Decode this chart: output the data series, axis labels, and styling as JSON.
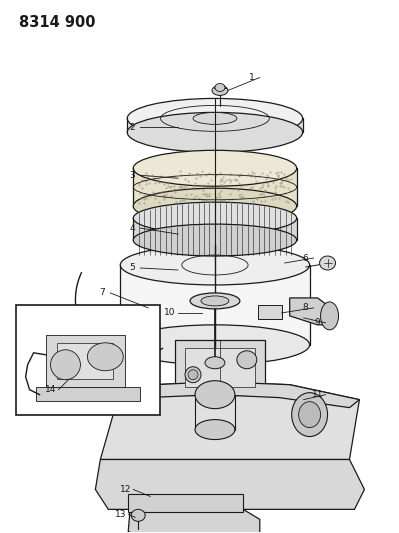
{
  "title": "8314 900",
  "bg_color": "#ffffff",
  "figsize": [
    3.99,
    5.33
  ],
  "dpi": 100,
  "black": "#1a1a1a",
  "gray": "#888888",
  "light_gray": "#cccccc",
  "title_fontsize": 10.5,
  "label_fontsize": 6.5
}
